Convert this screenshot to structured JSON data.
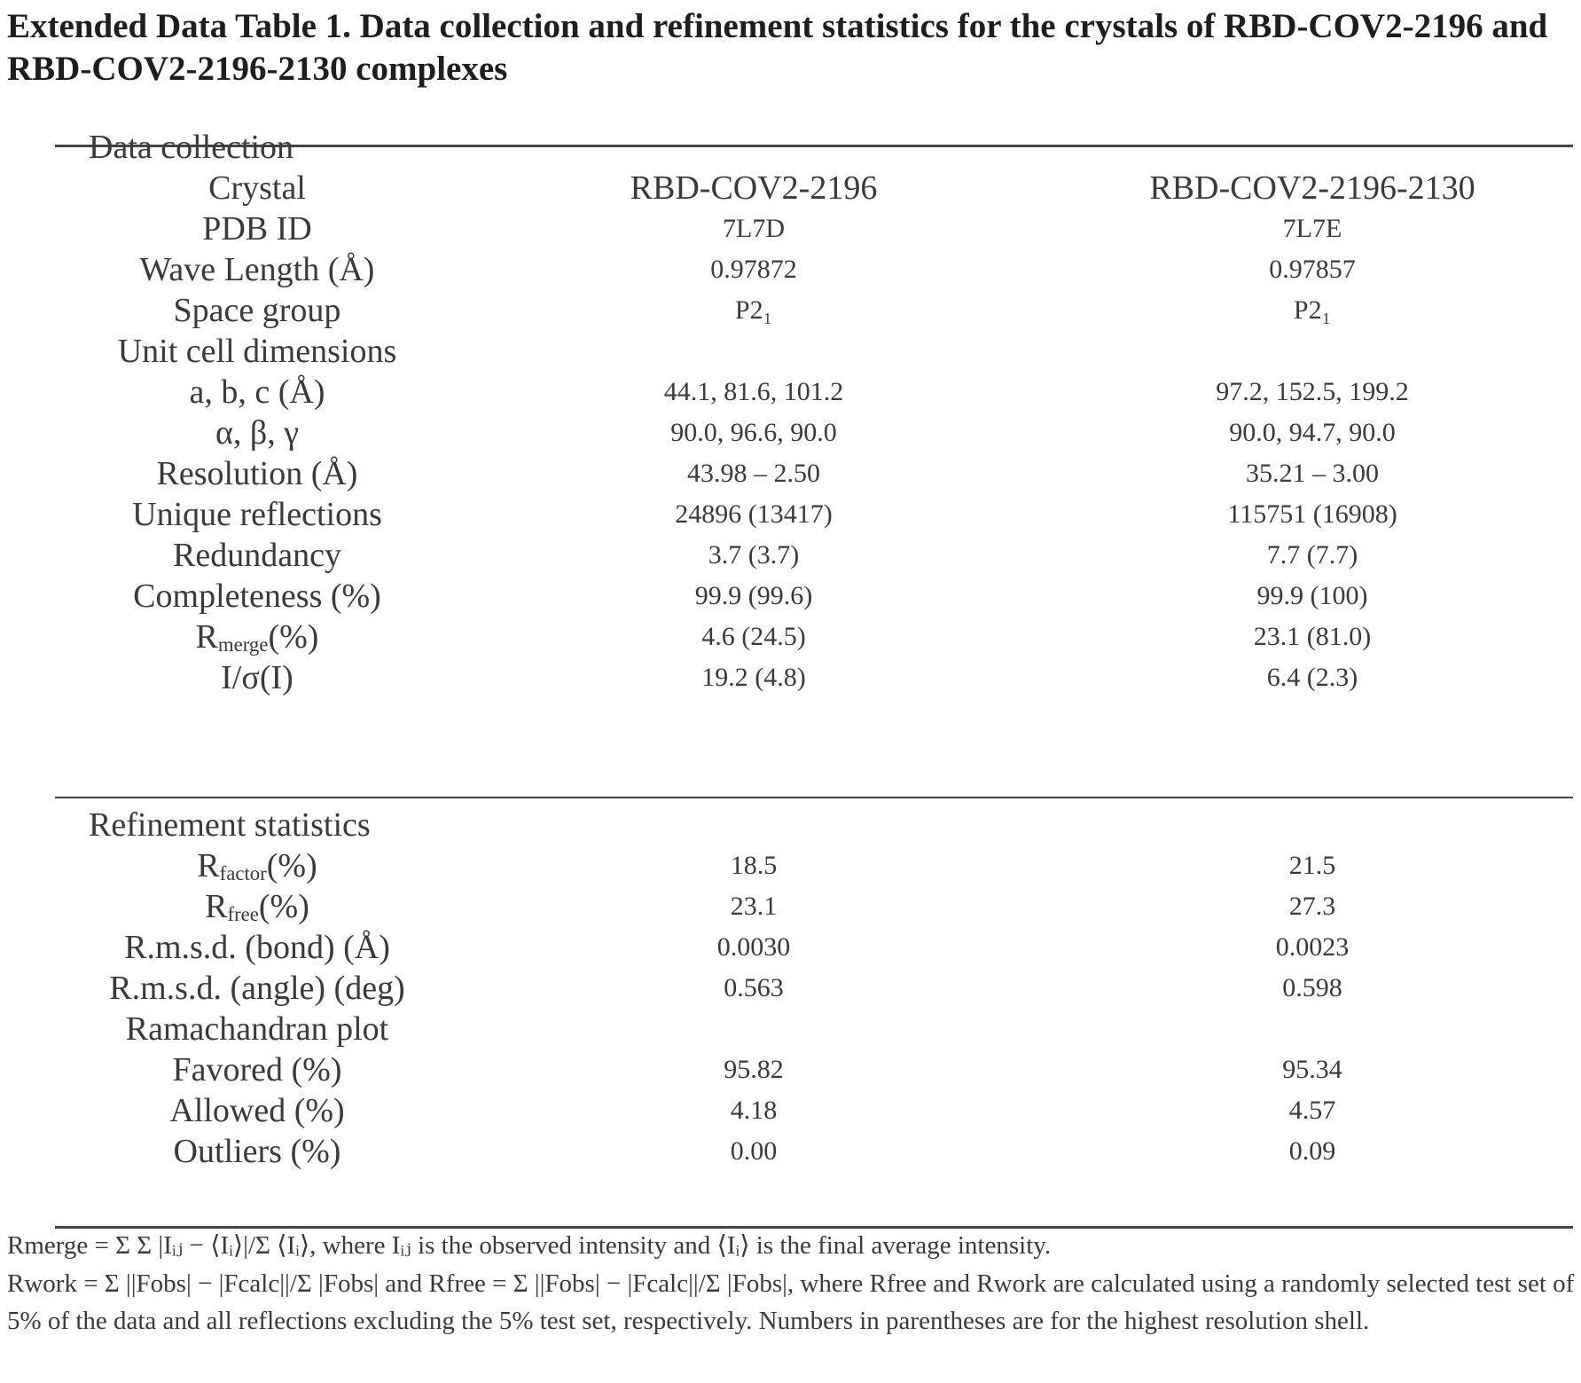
{
  "title": "Extended Data Table 1. Data collection and refinement statistics for the crystals of RBD-COV2-2196 and RBD-COV2-2196-2130 complexes",
  "sections": {
    "data_collection": "Data collection",
    "refinement": "Refinement statistics"
  },
  "rows": {
    "crystal": {
      "label": "Crystal",
      "c1": "RBD-COV2-2196",
      "c2": "RBD-COV2-2196-2130"
    },
    "pdb": {
      "label": "PDB ID",
      "c1": "7L7D",
      "c2": "7L7E"
    },
    "wave": {
      "label": "Wave Length (Å)",
      "c1": "0.97872",
      "c2": "0.97857"
    },
    "space": {
      "label": "Space group",
      "c1": "P2₁",
      "c2": "P2₁"
    },
    "unit_cell": {
      "label": "Unit cell dimensions"
    },
    "abc": {
      "label": "a, b, c (Å)",
      "c1": "44.1, 81.6, 101.2",
      "c2": "97.2, 152.5, 199.2"
    },
    "angles": {
      "label": "α, β, γ",
      "c1": "90.0, 96.6, 90.0",
      "c2": "90.0, 94.7, 90.0"
    },
    "resolution": {
      "label": "Resolution (Å)",
      "c1": "43.98 – 2.50",
      "c2": "35.21 – 3.00"
    },
    "unique": {
      "label": "Unique reflections",
      "c1": "24896 (13417)",
      "c2": "115751 (16908)"
    },
    "redundancy": {
      "label": "Redundancy",
      "c1": "3.7 (3.7)",
      "c2": "7.7 (7.7)"
    },
    "completeness": {
      "label": "Completeness (%)",
      "c1": "99.9 (99.6)",
      "c2": "99.9 (100)"
    },
    "rmerge": {
      "label_main": "R",
      "label_sub": "merge",
      "label_tail": "(%)",
      "c1": "4.6 (24.5)",
      "c2": "23.1 (81.0)"
    },
    "isig": {
      "label": "I/σ(I)",
      "c1": "19.2 (4.8)",
      "c2": "6.4 (2.3)"
    },
    "rfactor": {
      "label_main": "R",
      "label_sub": "factor",
      "label_tail": "(%)",
      "c1": "18.5",
      "c2": "21.5"
    },
    "rfree": {
      "label_main": "R",
      "label_sub": "free",
      "label_tail": "(%)",
      "c1": "23.1",
      "c2": "27.3"
    },
    "rmsd_bond": {
      "label": "R.m.s.d. (bond) (Å)",
      "c1": "0.0030",
      "c2": "0.0023"
    },
    "rmsd_angle": {
      "label": "R.m.s.d. (angle) (deg)",
      "c1": "0.563",
      "c2": "0.598"
    },
    "rama": {
      "label": "Ramachandran plot"
    },
    "favored": {
      "label": "Favored (%)",
      "c1": "95.82",
      "c2": "95.34"
    },
    "allowed": {
      "label": "Allowed (%)",
      "c1": "4.18",
      "c2": "4.57"
    },
    "outliers": {
      "label": "Outliers (%)",
      "c1": "0.00",
      "c2": "0.09"
    }
  },
  "footnotes": {
    "fn1": "Rmerge = Σ Σ |Iᵢⱼ − ⟨Iᵢ⟩|/Σ ⟨Iᵢ⟩, where Iᵢⱼ is the observed intensity and ⟨Iᵢ⟩ is the final average intensity.",
    "fn2": "Rwork = Σ ||Fobs| − |Fcalc||/Σ |Fobs| and Rfree = Σ ||Fobs| − |Fcalc||/Σ |Fobs|, where Rfree and Rwork are calculated using a randomly selected test set of 5% of the data and all reflections excluding the 5% test set, respectively. Numbers in parentheses are for the highest resolution shell."
  }
}
